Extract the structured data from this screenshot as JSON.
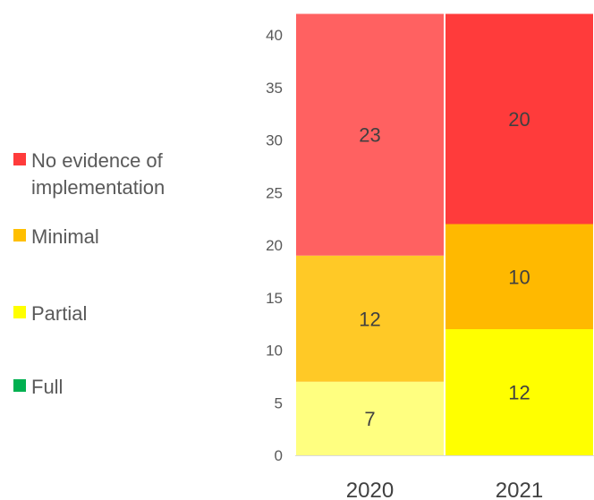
{
  "chart_data": {
    "type": "bar",
    "stacked": true,
    "categories": [
      "2020",
      "2021"
    ],
    "series": [
      {
        "name": "Partial",
        "values": [
          7,
          12
        ],
        "colors": [
          "#FFFF80",
          "#FFFF00"
        ]
      },
      {
        "name": "Minimal",
        "values": [
          12,
          10
        ],
        "colors": [
          "#FFC926",
          "#FFB900"
        ]
      },
      {
        "name": "No evidence of implementation",
        "values": [
          23,
          20
        ],
        "colors": [
          "#FF6161",
          "#FF3B3B"
        ]
      }
    ],
    "segment_stack": [
      {
        "category": "2020",
        "series": "Partial",
        "start": 0,
        "end": 7,
        "label": "7"
      },
      {
        "category": "2020",
        "series": "Minimal",
        "start": 7,
        "end": 19,
        "label": "12"
      },
      {
        "category": "2020",
        "series": "No evidence of implementation",
        "start": 19,
        "end": 42,
        "label": "23"
      },
      {
        "category": "2021",
        "series": "Partial",
        "start": 0,
        "end": 12,
        "label": "12"
      },
      {
        "category": "2021",
        "series": "Minimal",
        "start": 12,
        "end": 22,
        "label": "10"
      },
      {
        "category": "2021",
        "series": "No evidence of implementation",
        "start": 22,
        "end": 42,
        "label": "20"
      }
    ],
    "yticks": [
      "0",
      "5",
      "10",
      "15",
      "20",
      "25",
      "30",
      "35",
      "40"
    ],
    "ylim": [
      0,
      42
    ],
    "grid": false,
    "legend_position": "left"
  },
  "legend": [
    {
      "label": "No evidence of\nimplementation",
      "color": "#FF3B3B"
    },
    {
      "label": "Minimal",
      "color": "#FFBF00"
    },
    {
      "label": "Partial",
      "color": "#FFFF00"
    },
    {
      "label": "Full",
      "color": "#00B050"
    }
  ]
}
